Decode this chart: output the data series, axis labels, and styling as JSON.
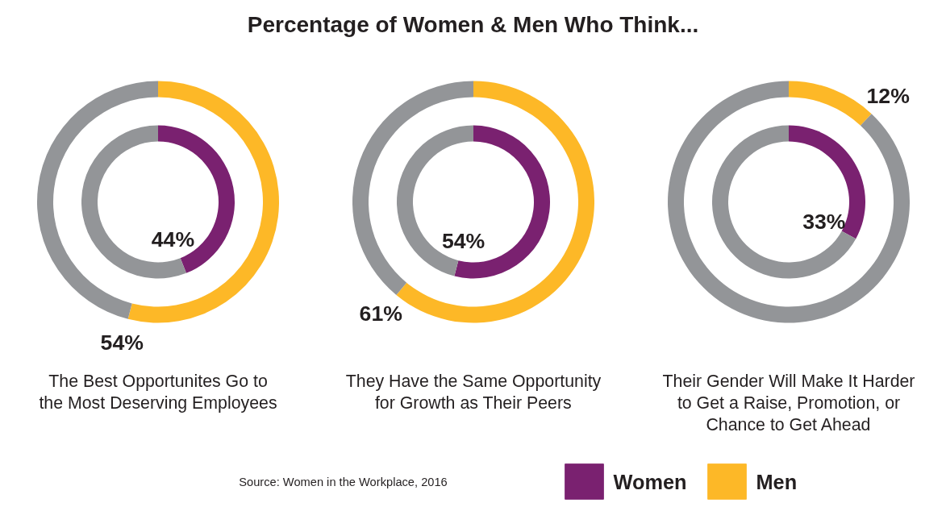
{
  "chart_data": [
    {
      "type": "donut",
      "xlabel": "The Best Opportunites Go to\nthe Most Deserving Employees",
      "categories": [
        null,
        null
      ],
      "legend": "bottom",
      "series": [
        {
          "name": "Women",
          "color": "#7a2170",
          "colors": [
            "#7a2170",
            "#939598"
          ],
          "values": [
            44,
            56
          ],
          "value_labels": [
            "44%",
            null
          ]
        },
        {
          "name": "Men",
          "color": "#fdb827",
          "colors": [
            "#fdb827",
            "#939598"
          ],
          "values": [
            54,
            46
          ],
          "value_labels": [
            "54%",
            null
          ]
        }
      ]
    },
    {
      "type": "donut",
      "title": "Percentage of Women & Men Who Think...",
      "xlabel": "They Have the Same Opportunity\nfor Growth as Their Peers",
      "categories": [
        null,
        null
      ],
      "legend": "bottom",
      "annotations": [
        "Source: Women in the Workplace, 2016"
      ],
      "series": [
        {
          "name": "Women",
          "color": "#7a2170",
          "colors": [
            "#7a2170",
            "#939598"
          ],
          "values": [
            54,
            46
          ],
          "value_labels": [
            "54%",
            null
          ]
        },
        {
          "name": "Men",
          "color": "#fdb827",
          "colors": [
            "#fdb827",
            "#939598"
          ],
          "values": [
            61,
            39
          ],
          "value_labels": [
            "61%",
            null
          ]
        }
      ]
    },
    {
      "type": "donut",
      "xlabel": "Their Gender Will Make It Harder\nto Get a Raise, Promotion, or\nChance to Get Ahead",
      "categories": [
        null,
        null
      ],
      "legend": "bottom",
      "series": [
        {
          "name": "Women",
          "color": "#7a2170",
          "colors": [
            "#7a2170",
            "#939598"
          ],
          "values": [
            33,
            67
          ],
          "value_labels": [
            "33%",
            null
          ]
        },
        {
          "name": "Men",
          "color": "#fdb827",
          "colors": [
            "#fdb827",
            "#939598"
          ],
          "values": [
            12,
            88
          ],
          "value_labels": [
            "12%",
            null
          ]
        }
      ]
    }
  ]
}
